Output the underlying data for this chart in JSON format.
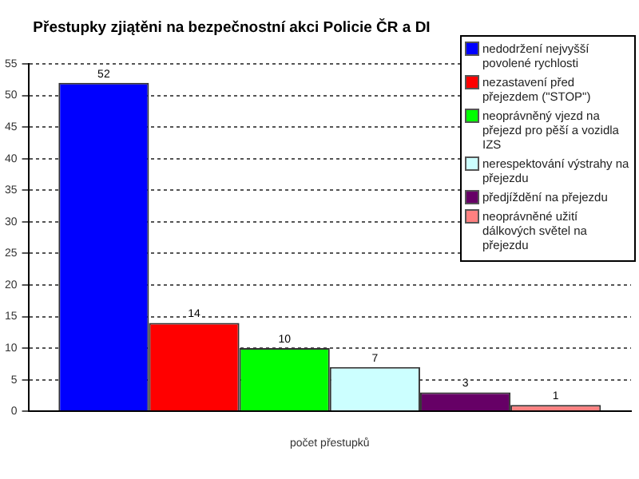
{
  "chart_data": {
    "type": "bar",
    "title": "Přestupky zjiątěni na bezpečnostní akci Policie ČR a DI",
    "categories": [
      "počet přestupků"
    ],
    "series": [
      {
        "name": "nedodržení nejvyšší povolené rychlosti",
        "color": "#0000ff",
        "values": [
          52
        ]
      },
      {
        "name": "nezastavení před přejezdem (\"STOP\")",
        "color": "#ff0000",
        "values": [
          14
        ]
      },
      {
        "name": "neoprávněný vjezd na přejezd pro pěší a vozidla IZS",
        "color": "#00ff00",
        "values": [
          10
        ]
      },
      {
        "name": "nerespektování výstrahy na přejezdu",
        "color": "#ccffff",
        "values": [
          7
        ]
      },
      {
        "name": "předjíždění na přejezdu",
        "color": "#660066",
        "values": [
          3
        ]
      },
      {
        "name": "neoprávněné užití dálkových světel na přejezdu",
        "color": "#ff8080",
        "values": [
          1
        ]
      }
    ],
    "ylim": [
      0,
      55
    ],
    "yticks": [
      0,
      5,
      10,
      15,
      20,
      25,
      30,
      35,
      40,
      45,
      50,
      55
    ],
    "grid": "y",
    "legend": "top right",
    "data_labels": true
  }
}
